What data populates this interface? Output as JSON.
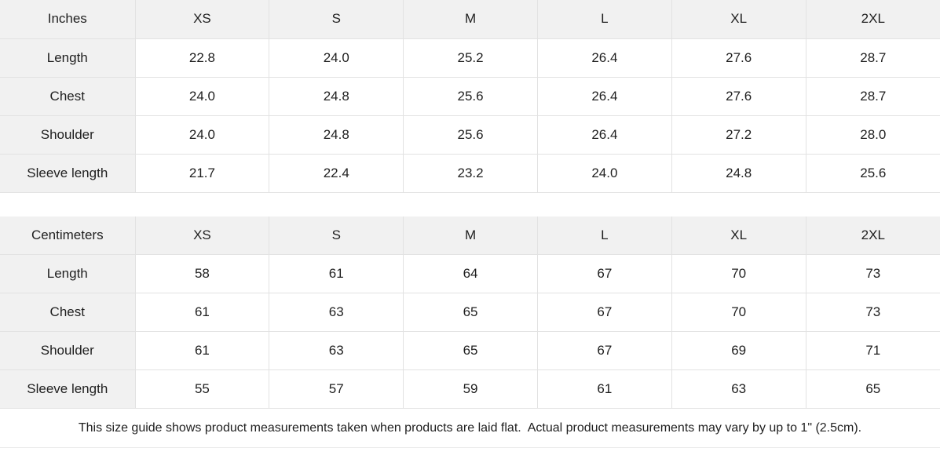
{
  "colors": {
    "header_bg": "#f1f1f1",
    "label_bg": "#f1f1f1",
    "cell_bg": "#ffffff",
    "border": "#e2e2e2",
    "text": "#1f1f1f"
  },
  "tables": [
    {
      "name": "inches",
      "unit_label": "Inches",
      "columns": [
        "XS",
        "S",
        "M",
        "L",
        "XL",
        "2XL"
      ],
      "rows": [
        {
          "label": "Length",
          "values": [
            "22.8",
            "24.0",
            "25.2",
            "26.4",
            "27.6",
            "28.7"
          ]
        },
        {
          "label": "Chest",
          "values": [
            "24.0",
            "24.8",
            "25.6",
            "26.4",
            "27.6",
            "28.7"
          ]
        },
        {
          "label": "Shoulder",
          "values": [
            "24.0",
            "24.8",
            "25.6",
            "26.4",
            "27.2",
            "28.0"
          ]
        },
        {
          "label": "Sleeve length",
          "values": [
            "21.7",
            "22.4",
            "23.2",
            "24.0",
            "24.8",
            "25.6"
          ]
        }
      ]
    },
    {
      "name": "centimeters",
      "unit_label": "Centimeters",
      "columns": [
        "XS",
        "S",
        "M",
        "L",
        "XL",
        "2XL"
      ],
      "rows": [
        {
          "label": "Length",
          "values": [
            "58",
            "61",
            "64",
            "67",
            "70",
            "73"
          ]
        },
        {
          "label": "Chest",
          "values": [
            "61",
            "63",
            "65",
            "67",
            "70",
            "73"
          ]
        },
        {
          "label": "Shoulder",
          "values": [
            "61",
            "63",
            "65",
            "67",
            "69",
            "71"
          ]
        },
        {
          "label": "Sleeve length",
          "values": [
            "55",
            "57",
            "59",
            "61",
            "63",
            "65"
          ]
        }
      ]
    }
  ],
  "footer": {
    "note": "This size guide shows product measurements taken when products are laid flat.  Actual product measurements may vary by up to 1\" (2.5cm)."
  }
}
